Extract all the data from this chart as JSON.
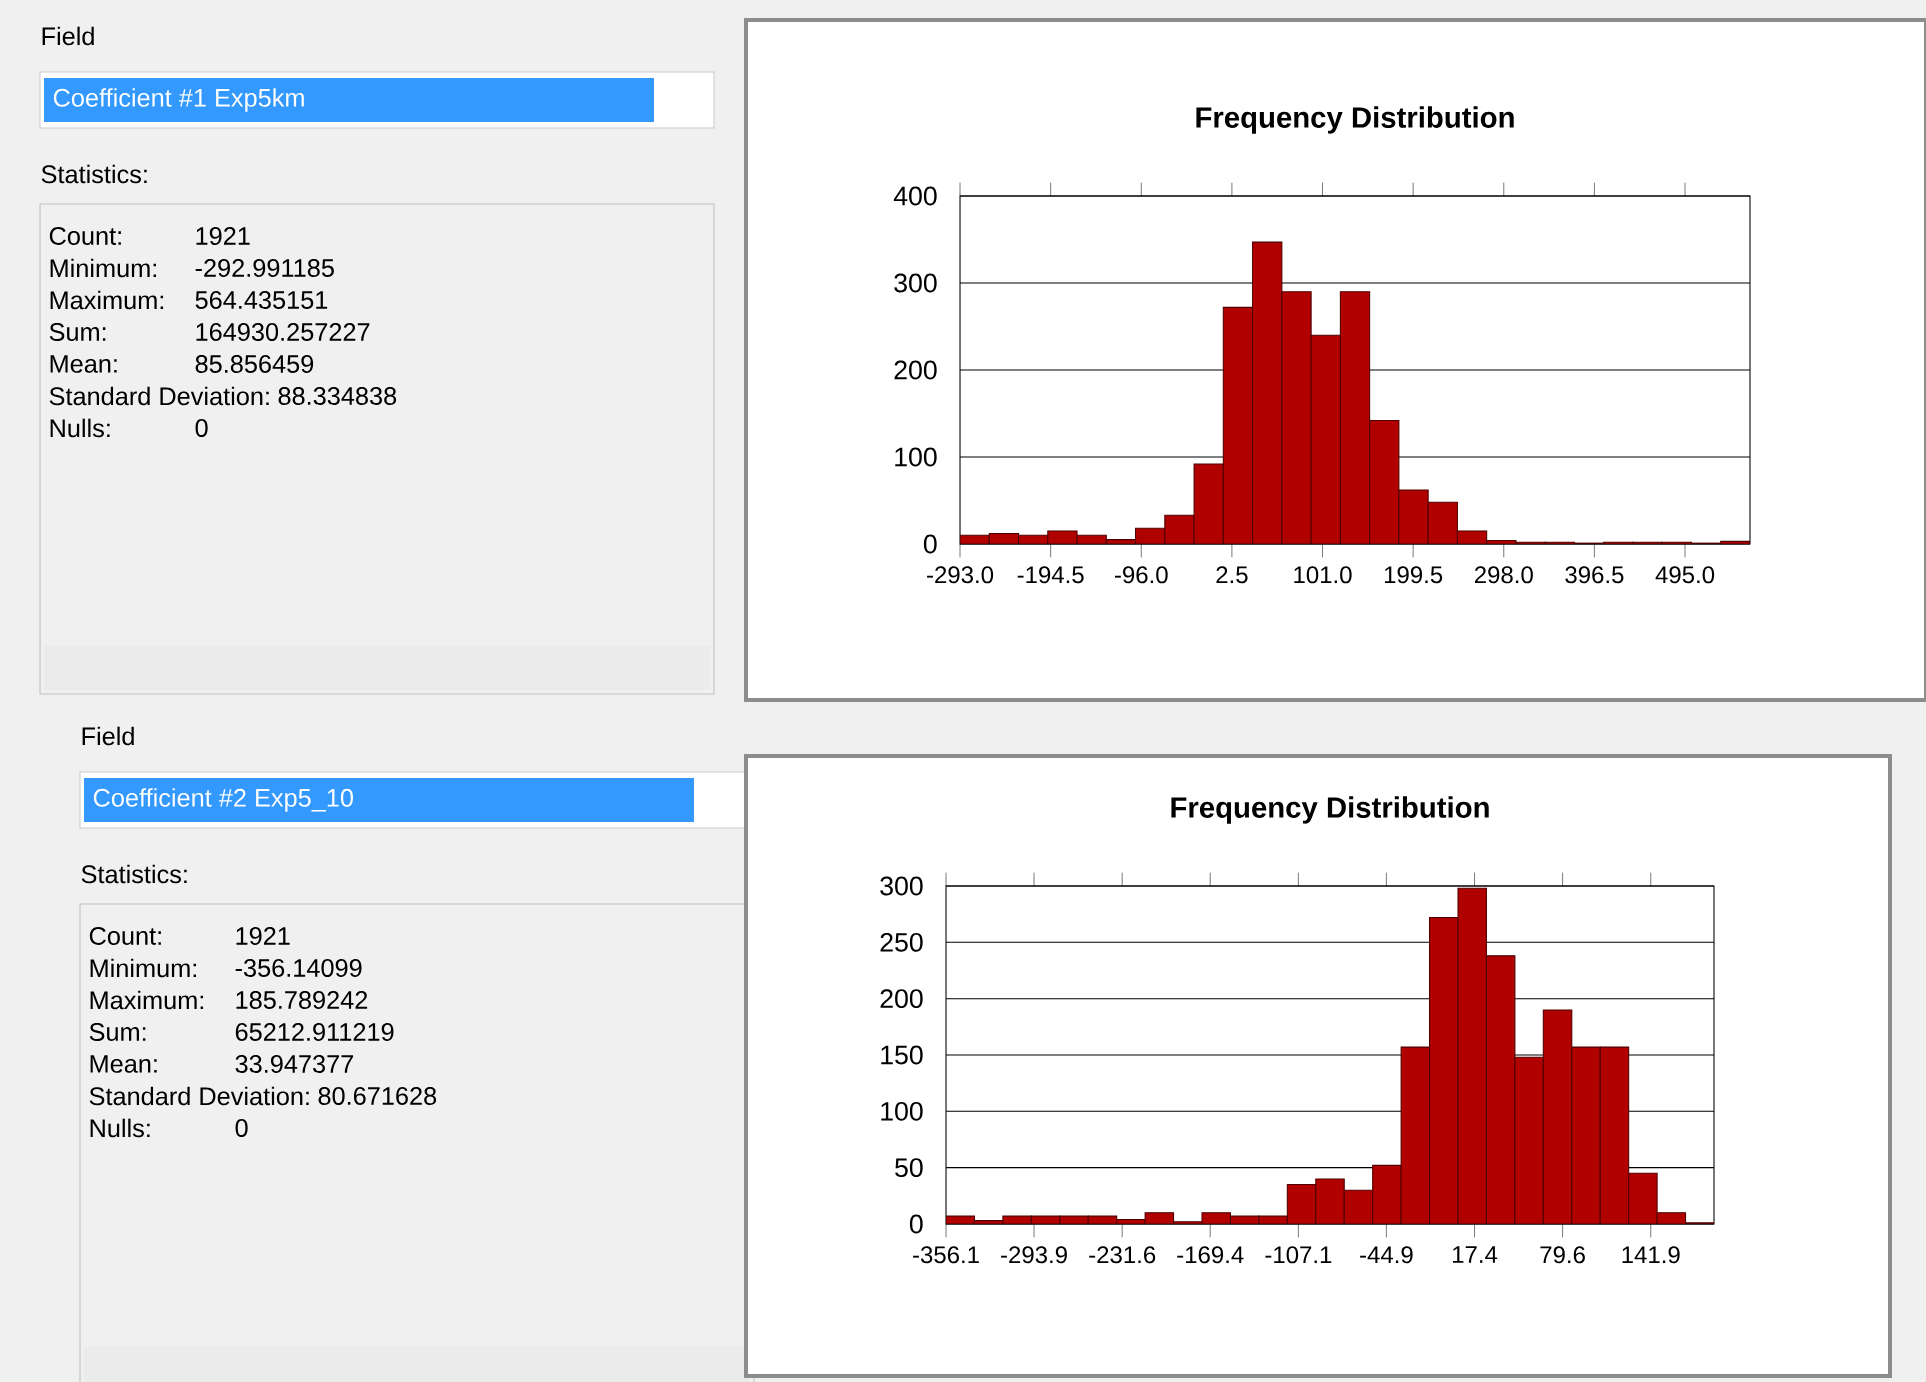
{
  "chart_data": [
    {
      "type": "other",
      "annotations": [
        "Field",
        "Coefficient #1 Exp5km",
        "Statistics:",
        "Count:",
        "1921",
        "Minimum:",
        "-292.991185",
        "Maximum:",
        "564.435151",
        "Sum:",
        "164930.257227",
        "Mean:",
        "85.856459",
        "Standard Deviation:",
        "88.334838",
        "Nulls:",
        "0"
      ]
    },
    {
      "type": "histogram",
      "title": "Frequency Distribution",
      "color": "#b00000",
      "bins": [
        -293.0,
        -261.2,
        -229.4,
        -197.6,
        -165.8,
        -134.0,
        -102.2,
        -70.4,
        -38.6,
        -6.8,
        25.0,
        56.8,
        88.6,
        120.4,
        152.2,
        184.0,
        215.8,
        247.6,
        279.4,
        311.2,
        343.0,
        374.8,
        406.6,
        438.4,
        470.2,
        502.0,
        533.8,
        565.6
      ],
      "values": [
        10,
        12,
        10,
        15,
        10,
        5,
        18,
        33,
        92,
        272,
        347,
        290,
        240,
        290,
        142,
        62,
        48,
        15,
        4,
        2,
        2,
        1,
        2,
        2,
        2,
        1,
        3
      ],
      "xlim": [
        -293.0,
        565.6
      ],
      "ylim": [
        0,
        400
      ],
      "xticks": [
        {
          "value": -293.0,
          "label": "-293.0"
        },
        {
          "value": -194.5,
          "label": "-194.5"
        },
        {
          "value": -96.0,
          "label": "-96.0"
        },
        {
          "value": 2.5,
          "label": "2.5"
        },
        {
          "value": 101.0,
          "label": "101.0"
        },
        {
          "value": 199.5,
          "label": "199.5"
        },
        {
          "value": 298.0,
          "label": "298.0"
        },
        {
          "value": 396.5,
          "label": "396.5"
        },
        {
          "value": 495.0,
          "label": "495.0"
        }
      ],
      "yticks": [
        0,
        100,
        200,
        300,
        400
      ],
      "grid": "y"
    },
    {
      "type": "other",
      "annotations": [
        "Field",
        "Coefficient #2 Exp5_10",
        "Statistics:",
        "Count:",
        "1921",
        "Minimum:",
        "-356.14099",
        "Maximum:",
        "185.789242",
        "Sum:",
        "65212.911219",
        "Mean:",
        "33.947377",
        "Standard Deviation:",
        "80.671628",
        "Nulls:",
        "0"
      ]
    },
    {
      "type": "histogram",
      "title": "Frequency Distribution",
      "color": "#b00000",
      "bins": [
        -356.1,
        -336.0,
        -315.9,
        -295.8,
        -275.7,
        -255.6,
        -235.5,
        -215.4,
        -195.3,
        -175.2,
        -155.1,
        -135.0,
        -114.9,
        -94.8,
        -74.7,
        -54.6,
        -34.5,
        -14.4,
        5.7,
        25.8,
        45.9,
        66.0,
        86.1,
        106.2,
        126.3,
        146.4,
        166.5,
        186.6
      ],
      "values": [
        7,
        3,
        7,
        7,
        7,
        7,
        4,
        10,
        2,
        10,
        7,
        7,
        35,
        40,
        30,
        52,
        157,
        272,
        298,
        238,
        148,
        190,
        157,
        157,
        45,
        10,
        1
      ],
      "xlim": [
        -356.1,
        186.6
      ],
      "ylim": [
        0,
        300
      ],
      "xticks": [
        {
          "value": -356.1,
          "label": "-356.1"
        },
        {
          "value": -293.9,
          "label": "-293.9"
        },
        {
          "value": -231.6,
          "label": "-231.6"
        },
        {
          "value": -169.4,
          "label": "-169.4"
        },
        {
          "value": -107.1,
          "label": "-107.1"
        },
        {
          "value": -44.9,
          "label": "-44.9"
        },
        {
          "value": 17.4,
          "label": "17.4"
        },
        {
          "value": 79.6,
          "label": "79.6"
        },
        {
          "value": 141.9,
          "label": "141.9"
        }
      ],
      "yticks": [
        0,
        50,
        100,
        150,
        200,
        250,
        300
      ],
      "grid": "y"
    }
  ]
}
